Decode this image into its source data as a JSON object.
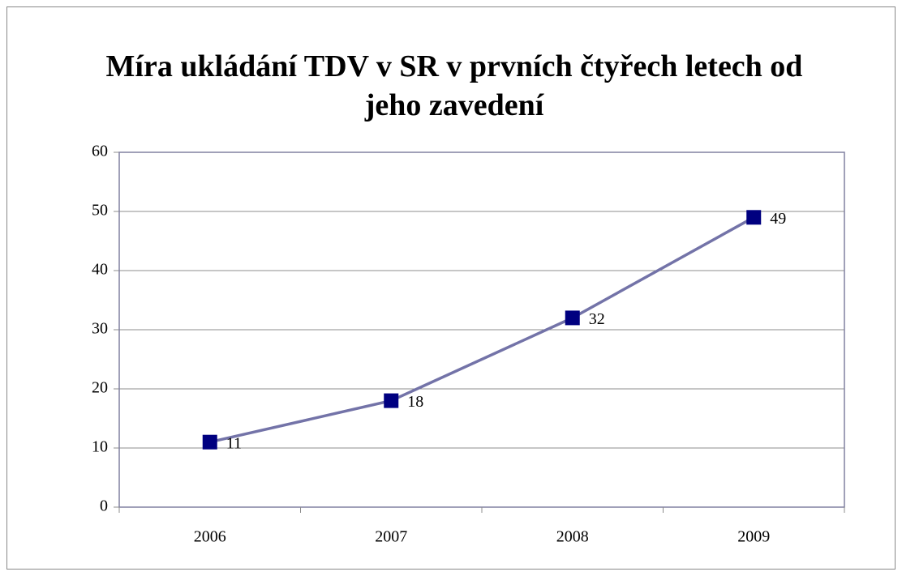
{
  "chart_data": {
    "type": "line",
    "title": "Míra ukládání TDV v SR v prvních čtyřech letech od jeho zavedení",
    "categories": [
      "2006",
      "2007",
      "2008",
      "2009"
    ],
    "values": [
      11,
      18,
      32,
      49
    ],
    "color": "#000080",
    "line_color": "#7373a8",
    "ylim": [
      0,
      60
    ],
    "yticks": [
      0,
      10,
      20,
      30,
      40,
      50,
      60
    ],
    "grid": true
  }
}
